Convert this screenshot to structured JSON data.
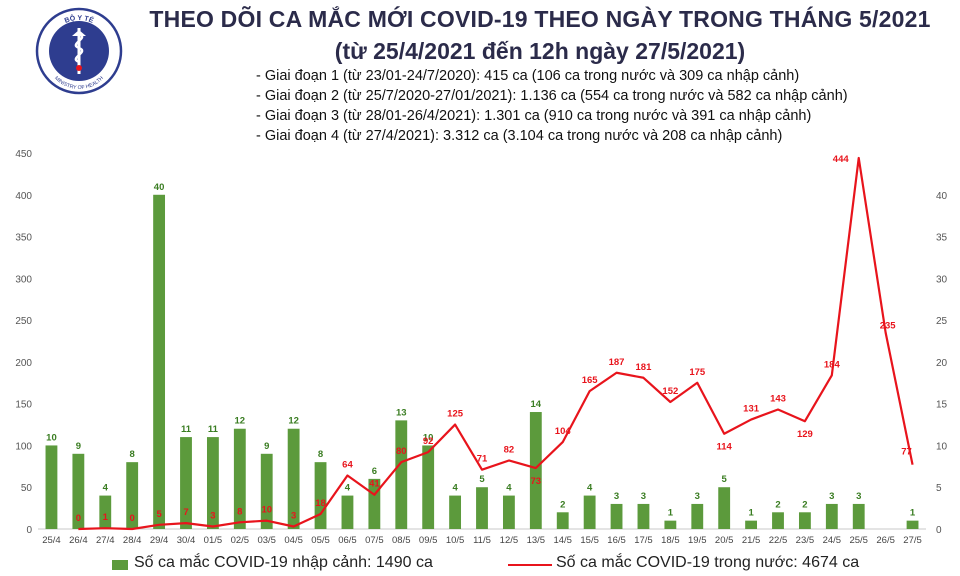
{
  "header": {
    "title_line1": "THEO DÕI CA MẮC MỚI COVID-19 THEO NGÀY TRONG THÁNG 5/2021",
    "title_line2": "(từ 25/4/2021 đến 12h ngày 27/5/2021)",
    "notes": [
      "- Giai đoạn 1 (từ 23/01-24/7/2020): 415 ca (106 ca trong nước và 309 ca nhập cảnh)",
      "- Giai đoạn 2 (từ 25/7/2020-27/01/2021): 1.136 ca (554 ca trong nước và 582 ca nhập cảnh)",
      "- Giai đoạn 3 (từ 28/01-26/4/2021): 1.301 ca (910 ca trong nước và 391 ca nhập cảnh)",
      "- Giai đoạn 4 (từ 27/4/2021): 3.312 ca (3.104 ca trong nước và 208 ca nhập cảnh)"
    ]
  },
  "logo": {
    "top_text": "BỘ Y TẾ",
    "bottom_text": "MINISTRY OF HEALTH",
    "icon": "ministry-of-health-seal-icon"
  },
  "legend": {
    "bar_label": "Số ca mắc COVID-19 nhập cảnh: 1490 ca",
    "line_label": "Số ca mắc COVID-19 trong nước: 4674 ca"
  },
  "chart_data": {
    "type": "bar+line",
    "categories": [
      "25/4",
      "26/4",
      "27/4",
      "28/4",
      "29/4",
      "30/4",
      "01/5",
      "02/5",
      "03/5",
      "04/5",
      "05/5",
      "06/5",
      "07/5",
      "08/5",
      "09/5",
      "10/5",
      "11/5",
      "12/5",
      "13/5",
      "14/5",
      "15/5",
      "16/5",
      "17/5",
      "18/5",
      "19/5",
      "20/5",
      "21/5",
      "22/5",
      "23/5",
      "24/5",
      "25/5",
      "26/5",
      "27/5"
    ],
    "left_axis": {
      "ylim": [
        0,
        450
      ],
      "ticks": [
        0,
        50,
        100,
        150,
        200,
        250,
        300,
        350,
        400,
        450
      ]
    },
    "right_axis": {
      "ylim": [
        0,
        45
      ],
      "ticks": [
        0,
        5,
        10,
        15,
        20,
        25,
        30,
        35,
        40
      ]
    },
    "series": [
      {
        "name": "Số ca mắc COVID-19 nhập cảnh",
        "type": "bar",
        "axis": "right",
        "color": "#5c9a3c",
        "values": [
          10,
          9,
          4,
          8,
          40,
          11,
          11,
          12,
          9,
          12,
          8,
          4,
          6,
          13,
          10,
          4,
          5,
          4,
          14,
          2,
          4,
          3,
          3,
          1,
          3,
          5,
          1,
          2,
          2,
          3,
          3,
          null,
          1
        ],
        "labels": [
          "10",
          "9",
          "4",
          "8",
          "40",
          "11",
          "11",
          "12",
          "9",
          "12",
          "8",
          "4",
          "6",
          "13",
          "10",
          "4",
          "5",
          "4",
          "14",
          "2",
          "4",
          "3",
          "3",
          "1",
          "3",
          "5",
          "1",
          "2",
          "2",
          "3",
          "3",
          "",
          "1"
        ],
        "label_color": "#3a7d22"
      },
      {
        "name": "Số ca mắc COVID-19 trong nước",
        "type": "line",
        "axis": "left",
        "color": "#e8141c",
        "values": [
          null,
          0,
          1,
          0,
          5,
          7,
          3,
          8,
          10,
          3,
          18,
          64,
          41,
          80,
          92,
          125,
          71,
          82,
          73,
          104,
          165,
          187,
          181,
          152,
          175,
          114,
          131,
          143,
          129,
          184,
          444,
          235,
          77
        ],
        "labels": [
          "",
          "0",
          "1",
          "0",
          "5",
          "7",
          "3",
          "8",
          "10",
          "3",
          "18",
          "64",
          "41",
          "80",
          "92",
          "125",
          "71",
          "82",
          "73",
          "104",
          "165",
          "187",
          "181",
          "152",
          "175",
          "114",
          "131",
          "143",
          "129",
          "184",
          "444",
          "235",
          "77"
        ],
        "label_color": "#e8141c"
      }
    ]
  }
}
